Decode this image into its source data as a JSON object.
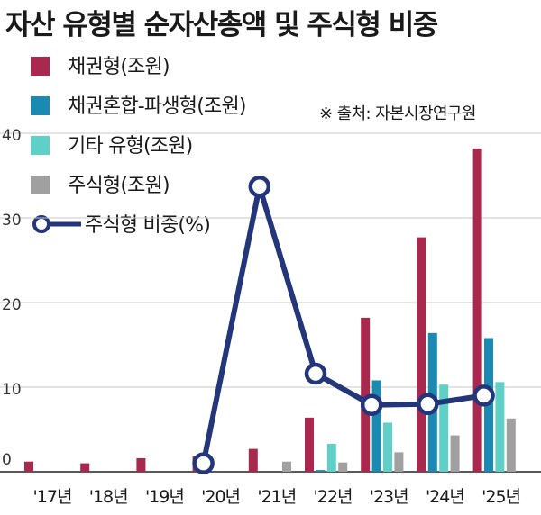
{
  "title": "자산 유형별 순자산총액 및 주식형 비중",
  "source": "※ 출처: 자본시장연구원",
  "colors": {
    "bond": "#a8284e",
    "bond_mixed": "#1b8ab2",
    "other": "#5fd0c8",
    "equity": "#a0a0a0",
    "equity_share": "#23367a"
  },
  "chart_data": {
    "type": "bar",
    "categories": [
      "'17년",
      "'18년",
      "'19년",
      "'20년",
      "'21년",
      "'22년",
      "'23년",
      "'24년",
      "'25년"
    ],
    "ylim": [
      0,
      40
    ],
    "yticks": [
      "0",
      "10",
      "20",
      "30",
      "40"
    ],
    "series": [
      {
        "name": "채권형(조원)",
        "type": "bar",
        "values": [
          1.2,
          1.0,
          1.6,
          1.8,
          2.7,
          6.4,
          18.2,
          27.7,
          38.2
        ]
      },
      {
        "name": "채권혼합-파생형(조원)",
        "type": "bar",
        "values": [
          0,
          0,
          0,
          0,
          0,
          0.2,
          10.8,
          16.4,
          15.8
        ]
      },
      {
        "name": "기타 유형(조원)",
        "type": "bar",
        "values": [
          0,
          0,
          0,
          0,
          0,
          3.3,
          5.8,
          10.3,
          10.6
        ]
      },
      {
        "name": "주식형(조원)",
        "type": "bar",
        "values": [
          0,
          0,
          0,
          0,
          1.2,
          1.1,
          2.3,
          4.3,
          6.3
        ]
      },
      {
        "name": "주식형 비중(%)",
        "type": "line",
        "values": [
          null,
          null,
          null,
          1.0,
          33.7,
          11.6,
          7.9,
          8.0,
          9.0
        ]
      }
    ]
  }
}
